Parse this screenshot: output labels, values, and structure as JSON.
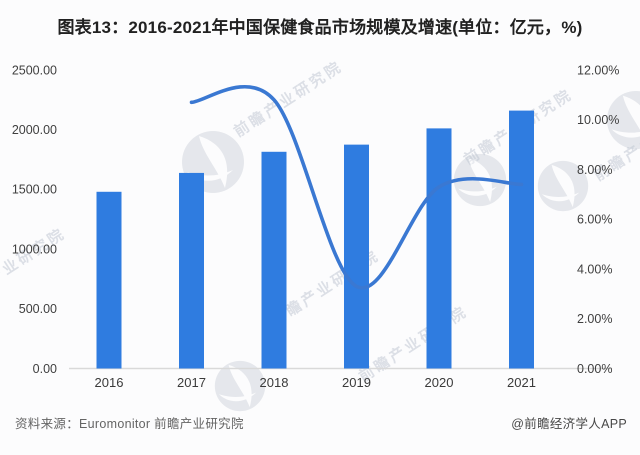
{
  "chart_data": {
    "type": "bar+line",
    "title": "图表13：2016-2021年中国保健食品市场规模及增速(单位：亿元，%)",
    "categories": [
      "2016",
      "2017",
      "2018",
      "2019",
      "2020",
      "2021"
    ],
    "bar_series": {
      "axis": "left",
      "unit": "亿元",
      "values": [
        1480,
        1638,
        1815,
        1875,
        2011,
        2160
      ],
      "color": "#2f7ce0"
    },
    "line_series": {
      "axis": "right",
      "unit": "%",
      "values": [
        null,
        10.7,
        10.8,
        3.3,
        7.3,
        7.4
      ],
      "color": "#3a78d2",
      "smooth": true
    },
    "left_axis": {
      "min": 0,
      "max": 2500,
      "ticks": [
        "0.00",
        "500.00",
        "1000.00",
        "1500.00",
        "2000.00",
        "2500.00"
      ]
    },
    "right_axis": {
      "min": 0,
      "max": 12,
      "ticks": [
        "0.00%",
        "2.00%",
        "4.00%",
        "6.00%",
        "8.00%",
        "10.00%",
        "12.00%"
      ]
    },
    "axis_line_color": "#d9d9d9",
    "grid": false,
    "legend": "none"
  },
  "footer": {
    "source": "资料来源：Euromonitor 前瞻产业研究院",
    "credit": "@前瞻经济学人APP"
  },
  "watermark": {
    "text": "前瞻产业研究院"
  }
}
